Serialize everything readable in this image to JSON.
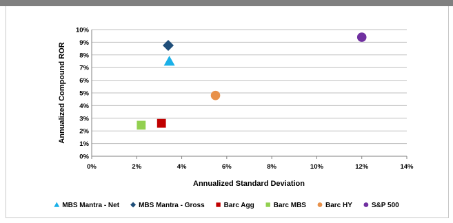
{
  "chart_data": {
    "type": "scatter",
    "title": "",
    "xlabel": "Annualized Standard Deviation",
    "ylabel": "Annualized Compound ROR",
    "xlim": [
      0,
      14
    ],
    "ylim": [
      0,
      10
    ],
    "x_ticks": [
      "0%",
      "2%",
      "4%",
      "6%",
      "8%",
      "10%",
      "12%",
      "14%"
    ],
    "y_ticks": [
      "0%",
      "1%",
      "2%",
      "3%",
      "4%",
      "5%",
      "6%",
      "7%",
      "8%",
      "9%",
      "10%"
    ],
    "grid": "horizontal",
    "legend_position": "bottom",
    "series": [
      {
        "name": "MBS Mantra - Net",
        "marker": "triangle",
        "color": "#1ab0e8",
        "x": 3.45,
        "y": 7.5
      },
      {
        "name": "MBS Mantra - Gross",
        "marker": "diamond",
        "color": "#1f4e79",
        "x": 3.4,
        "y": 8.75
      },
      {
        "name": "Barc Agg",
        "marker": "square",
        "color": "#c00000",
        "x": 3.1,
        "y": 2.6
      },
      {
        "name": "Barc MBS",
        "marker": "square",
        "color": "#92d050",
        "x": 2.2,
        "y": 2.45
      },
      {
        "name": "Barc HY",
        "marker": "circle",
        "color": "#e8914a",
        "x": 5.5,
        "y": 4.8
      },
      {
        "name": "S&P 500",
        "marker": "circle",
        "color": "#7030a0",
        "x": 12.0,
        "y": 9.4
      }
    ]
  }
}
